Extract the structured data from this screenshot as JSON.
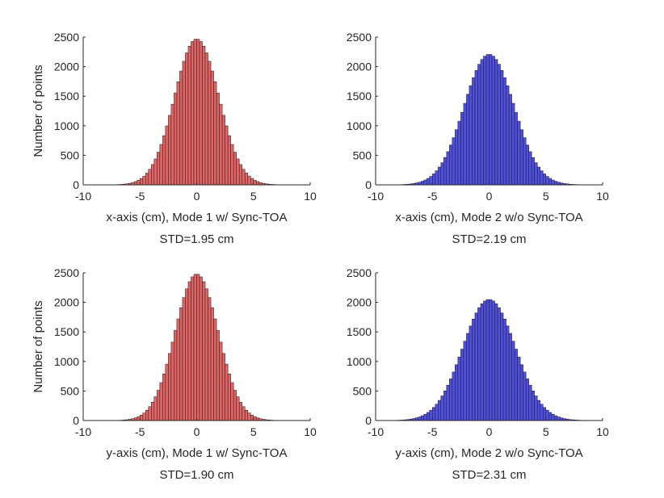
{
  "figure": {
    "background": "#ffffff",
    "axis_color": "#262626"
  },
  "chart_data": [
    {
      "type": "bar",
      "title": "",
      "xlabel": "x-axis (cm), Mode 1 w/ Sync-TOA",
      "subtitle": "STD=1.95 cm",
      "ylabel": "Number of points",
      "xlim": [
        -10,
        10
      ],
      "ylim": [
        0,
        2500
      ],
      "xticks": [
        -10,
        -5,
        0,
        5,
        10
      ],
      "yticks": [
        0,
        500,
        1000,
        1500,
        2000,
        2500
      ],
      "std": 1.95,
      "peak": 2470,
      "bin_width": 0.25,
      "color": "#e36464",
      "edge_color": "#1a1a1a"
    },
    {
      "type": "bar",
      "title": "",
      "xlabel": "x-axis (cm), Mode 2 w/o Sync-TOA",
      "subtitle": "STD=2.19 cm",
      "ylabel": "",
      "xlim": [
        -10,
        10
      ],
      "ylim": [
        0,
        2500
      ],
      "xticks": [
        -10,
        -5,
        0,
        5,
        10
      ],
      "yticks": [
        0,
        500,
        1000,
        1500,
        2000,
        2500
      ],
      "std": 2.19,
      "peak": 2210,
      "bin_width": 0.25,
      "color": "#4f4fe0",
      "edge_color": "#1a1a1a"
    },
    {
      "type": "bar",
      "title": "",
      "xlabel": "y-axis (cm), Mode 1 w/ Sync-TOA",
      "subtitle": "STD=1.90 cm",
      "ylabel": "Number of points",
      "xlim": [
        -10,
        10
      ],
      "ylim": [
        0,
        2500
      ],
      "xticks": [
        -10,
        -5,
        0,
        5,
        10
      ],
      "yticks": [
        0,
        500,
        1000,
        1500,
        2000,
        2500
      ],
      "std": 1.9,
      "peak": 2480,
      "bin_width": 0.25,
      "color": "#e36464",
      "edge_color": "#1a1a1a"
    },
    {
      "type": "bar",
      "title": "",
      "xlabel": "y-axis (cm), Mode 2 w/o Sync-TOA",
      "subtitle": "STD=2.31 cm",
      "ylabel": "",
      "xlim": [
        -10,
        10
      ],
      "ylim": [
        0,
        2500
      ],
      "xticks": [
        -10,
        -5,
        0,
        5,
        10
      ],
      "yticks": [
        0,
        500,
        1000,
        1500,
        2000,
        2500
      ],
      "std": 2.31,
      "peak": 2050,
      "bin_width": 0.25,
      "color": "#4f4fe0",
      "edge_color": "#1a1a1a"
    }
  ]
}
